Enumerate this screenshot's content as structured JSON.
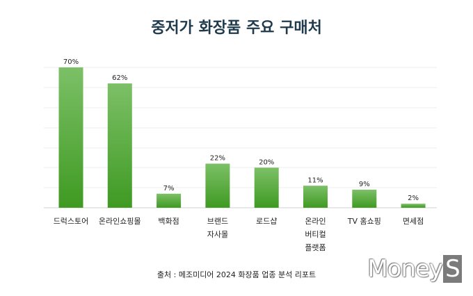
{
  "chart_data": {
    "type": "bar",
    "title": "중저가 화장품 주요 구매처",
    "categories": [
      "드럭스토어",
      "온라인쇼핑몰",
      "백화점",
      "브랜드\n자사몰",
      "로드샵",
      "온라인\n버티컬\n플랫폼",
      "TV 홈쇼핑",
      "면세점"
    ],
    "values": [
      70,
      62,
      7,
      22,
      20,
      11,
      9,
      2
    ],
    "value_labels": [
      "70%",
      "62%",
      "7%",
      "22%",
      "20%",
      "11%",
      "9%",
      "2%"
    ],
    "ylim": [
      0,
      70
    ],
    "grid": true,
    "legend": "none",
    "bar_color_top": "#7cc067",
    "bar_color_bottom": "#3f9a22"
  },
  "source": "출처 : 메조미디어 2024 화장품 업종 분석 리포트",
  "logo": {
    "text": "Money",
    "accent": "S"
  }
}
